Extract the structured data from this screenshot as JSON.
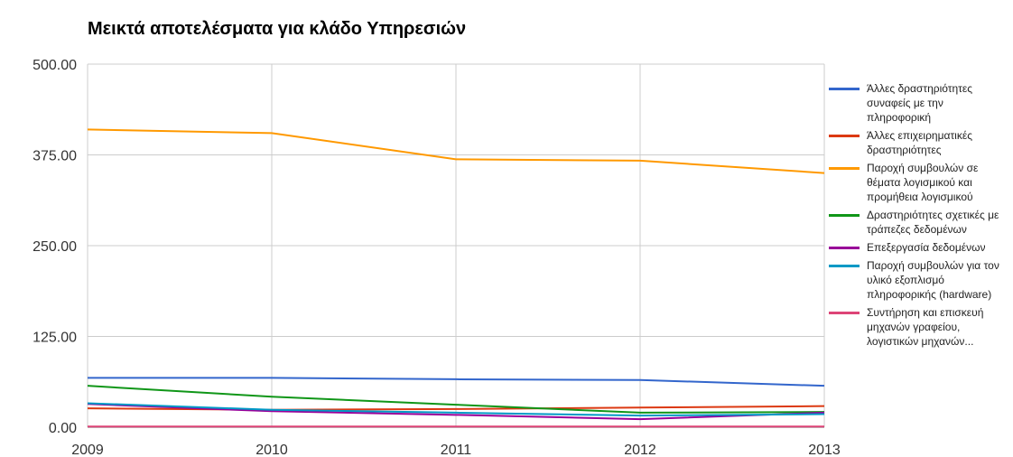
{
  "chart_data": {
    "type": "line",
    "title": "Μεικτά αποτελέσματα για κλάδο Υπηρεσιών",
    "x": [
      2009,
      2010,
      2011,
      2012,
      2013
    ],
    "xlim": [
      2009,
      2013
    ],
    "xticks": [
      2009,
      2010,
      2011,
      2012,
      2013
    ],
    "ylim": [
      0,
      500
    ],
    "yticks": [
      {
        "value": 0,
        "label": "0.00"
      },
      {
        "value": 125,
        "label": "125.00"
      },
      {
        "value": 250,
        "label": "250.00"
      },
      {
        "value": 375,
        "label": "375.00"
      },
      {
        "value": 500,
        "label": "500.00"
      }
    ],
    "grid": true,
    "legend": "right",
    "series": [
      {
        "name": "Άλλες δραστηριότητες συναφείς με την πληροφορική",
        "color": "#3366cc",
        "values": [
          68,
          68,
          66,
          65,
          57
        ]
      },
      {
        "name": "Άλλες επιχειρηματικές δραστηριότητες",
        "color": "#dc3912",
        "values": [
          26,
          24,
          25,
          27,
          29
        ]
      },
      {
        "name": "Παροχή συμβουλών σε θέματα λογισμικού και προμήθεια λογισμικού",
        "color": "#ff9900",
        "values": [
          410,
          405,
          369,
          367,
          350
        ]
      },
      {
        "name": "Δραστηριότητες σχετικές με τράπεζες δεδομένων",
        "color": "#109618",
        "values": [
          57,
          42,
          31,
          20,
          21
        ]
      },
      {
        "name": "Επεξεργασία δεδομένων",
        "color": "#990099",
        "values": [
          32,
          22,
          17,
          11,
          20
        ]
      },
      {
        "name": "Παροχή συμβουλών για τον υλικό εξοπλισμό πληροφορικής (hardware)",
        "color": "#0099c6",
        "values": [
          33,
          24,
          20,
          16,
          18
        ]
      },
      {
        "name": "Συντήρηση και επισκευή μηχανών γραφείου, λογιστικών μηχανών...",
        "color": "#dd4477",
        "values": [
          1,
          1,
          1,
          1,
          1
        ]
      }
    ]
  }
}
